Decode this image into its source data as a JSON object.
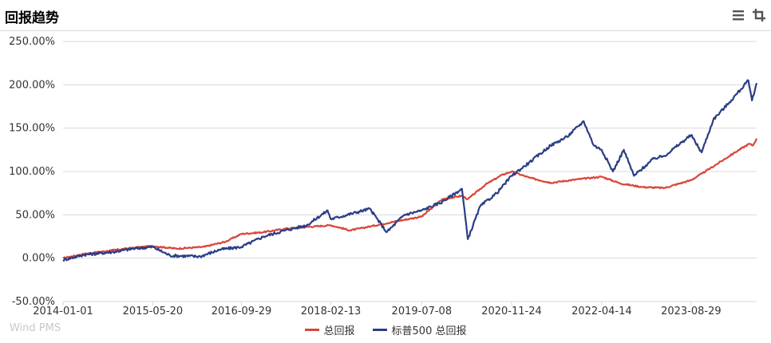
{
  "header": {
    "title": "回报趋势"
  },
  "watermark": "Wind PMS",
  "icons": {
    "menu": "menu-icon",
    "crop": "crop-icon"
  },
  "colors": {
    "red": "#d9453a",
    "blue": "#2b3e86",
    "grid": "#d9d9d9",
    "tick": "#333333"
  },
  "chart_data": {
    "type": "line",
    "title": "",
    "xlabel": "",
    "ylabel": "",
    "x_ticks": [
      "2014-01-01",
      "2015-05-20",
      "2016-09-29",
      "2018-02-13",
      "2019-07-08",
      "2020-11-24",
      "2022-04-14",
      "2023-08-29"
    ],
    "y_ticks": [
      "250.00%",
      "200.00%",
      "150.00%",
      "100.00%",
      "50.00%",
      "0.00%",
      "-50.00%"
    ],
    "ylim": [
      -50,
      250
    ],
    "xlim": [
      "2014-01-01",
      "2024-08-31"
    ],
    "legend_position": "bottom-center",
    "grid": true,
    "series": [
      {
        "name": "总回报",
        "color": "#d9453a",
        "points": [
          [
            "2014-01-01",
            0
          ],
          [
            "2014-05-01",
            5
          ],
          [
            "2014-10-01",
            9
          ],
          [
            "2015-02-01",
            12
          ],
          [
            "2015-05-20",
            14
          ],
          [
            "2015-10-01",
            11
          ],
          [
            "2016-03-01",
            13
          ],
          [
            "2016-07-01",
            19
          ],
          [
            "2016-09-29",
            28
          ],
          [
            "2017-02-01",
            30
          ],
          [
            "2017-06-01",
            34
          ],
          [
            "2017-10-01",
            36
          ],
          [
            "2018-02-13",
            38
          ],
          [
            "2018-06-01",
            32
          ],
          [
            "2018-10-01",
            37
          ],
          [
            "2019-02-01",
            42
          ],
          [
            "2019-07-08",
            48
          ],
          [
            "2019-11-01",
            68
          ],
          [
            "2020-02-20",
            72
          ],
          [
            "2020-03-23",
            68
          ],
          [
            "2020-07-01",
            85
          ],
          [
            "2020-10-01",
            96
          ],
          [
            "2020-11-24",
            100
          ],
          [
            "2021-03-01",
            93
          ],
          [
            "2021-07-01",
            87
          ],
          [
            "2021-12-01",
            91
          ],
          [
            "2022-04-14",
            94
          ],
          [
            "2022-08-01",
            86
          ],
          [
            "2022-12-01",
            82
          ],
          [
            "2023-04-01",
            81
          ],
          [
            "2023-08-29",
            90
          ],
          [
            "2023-11-01",
            98
          ],
          [
            "2024-02-01",
            110
          ],
          [
            "2024-05-01",
            122
          ],
          [
            "2024-07-20",
            132
          ],
          [
            "2024-08-10",
            130
          ],
          [
            "2024-08-31",
            138
          ]
        ]
      },
      {
        "name": "标普500 总回报",
        "color": "#2b3e86",
        "points": [
          [
            "2014-01-01",
            -2
          ],
          [
            "2014-05-01",
            4
          ],
          [
            "2014-10-01",
            7
          ],
          [
            "2015-02-01",
            11
          ],
          [
            "2015-05-20",
            13
          ],
          [
            "2015-08-25",
            3
          ],
          [
            "2016-02-11",
            2
          ],
          [
            "2016-06-01",
            10
          ],
          [
            "2016-09-29",
            13
          ],
          [
            "2017-02-01",
            25
          ],
          [
            "2017-06-01",
            32
          ],
          [
            "2017-10-01",
            38
          ],
          [
            "2018-01-26",
            55
          ],
          [
            "2018-02-13",
            45
          ],
          [
            "2018-09-20",
            57
          ],
          [
            "2018-12-24",
            30
          ],
          [
            "2019-04-01",
            50
          ],
          [
            "2019-07-08",
            55
          ],
          [
            "2019-11-01",
            65
          ],
          [
            "2020-02-19",
            80
          ],
          [
            "2020-03-23",
            22
          ],
          [
            "2020-06-01",
            60
          ],
          [
            "2020-09-01",
            75
          ],
          [
            "2020-11-24",
            95
          ],
          [
            "2021-03-01",
            110
          ],
          [
            "2021-07-01",
            130
          ],
          [
            "2021-10-01",
            140
          ],
          [
            "2022-01-03",
            158
          ],
          [
            "2022-03-01",
            130
          ],
          [
            "2022-04-14",
            125
          ],
          [
            "2022-06-16",
            100
          ],
          [
            "2022-08-16",
            125
          ],
          [
            "2022-10-12",
            95
          ],
          [
            "2023-02-01",
            115
          ],
          [
            "2023-04-01",
            118
          ],
          [
            "2023-08-29",
            142
          ],
          [
            "2023-10-27",
            122
          ],
          [
            "2024-01-01",
            160
          ],
          [
            "2024-04-01",
            180
          ],
          [
            "2024-07-16",
            205
          ],
          [
            "2024-08-05",
            182
          ],
          [
            "2024-08-31",
            202
          ]
        ]
      }
    ]
  }
}
